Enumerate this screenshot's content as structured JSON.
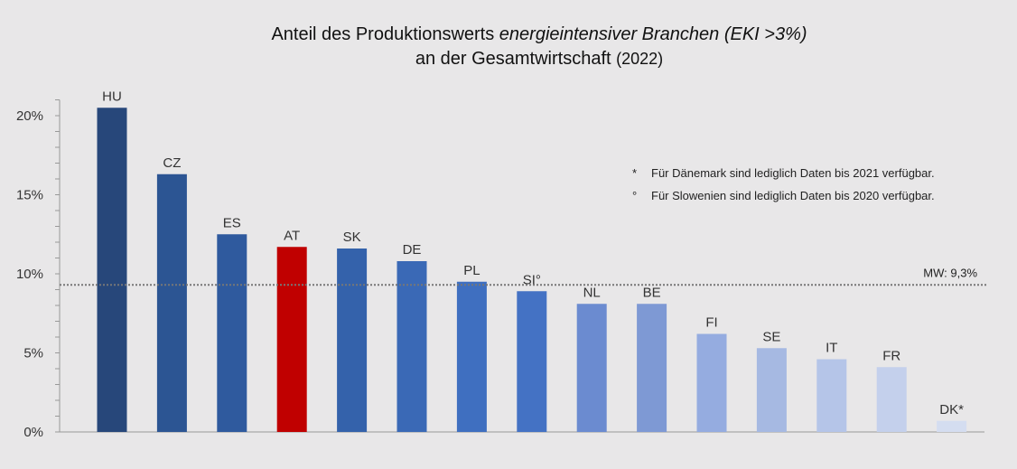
{
  "chart_data": {
    "type": "bar",
    "title": {
      "line1_regular": "Anteil des Produktionswerts ",
      "line1_italic": "energieintensiver Branchen (EKI >3%)",
      "line2_regular": "an der Gesamtwirtschaft ",
      "line2_year": "(2022)"
    },
    "xlabel": "",
    "ylabel": "",
    "ylim": [
      0,
      21
    ],
    "yticks": [
      0,
      5,
      10,
      15,
      20
    ],
    "ytick_labels": [
      "0%",
      "5%",
      "10%",
      "15%",
      "20%"
    ],
    "minor_ticks_step": 1,
    "grid": false,
    "categories": [
      "HU",
      "CZ",
      "ES",
      "AT",
      "SK",
      "DE",
      "PL",
      "SI°",
      "NL",
      "BE",
      "FI",
      "SE",
      "IT",
      "FR",
      "DK*"
    ],
    "values": [
      20.5,
      16.3,
      12.5,
      11.7,
      11.6,
      10.8,
      9.5,
      8.9,
      8.1,
      8.1,
      6.2,
      5.3,
      4.6,
      4.1,
      0.7
    ],
    "colors": [
      "#27477a",
      "#2c5593",
      "#2f5a9e",
      "#c00000",
      "#3462ab",
      "#3a69b6",
      "#3f6fc0",
      "#4472c4",
      "#6b8bd0",
      "#7e99d4",
      "#95ace0",
      "#a6b9e2",
      "#b5c5e8",
      "#c4d0ec",
      "#d4ddf0"
    ],
    "highlight": "AT",
    "mean_line": {
      "value": 9.3,
      "label": "MW: 9,3%",
      "style": "dotted"
    },
    "notes": [
      {
        "symbol": "*",
        "text": "Für Dänemark sind lediglich Daten bis 2021 verfügbar."
      },
      {
        "symbol": "°",
        "text": "Für Slowenien sind lediglich Daten bis 2020 verfügbar."
      }
    ]
  }
}
